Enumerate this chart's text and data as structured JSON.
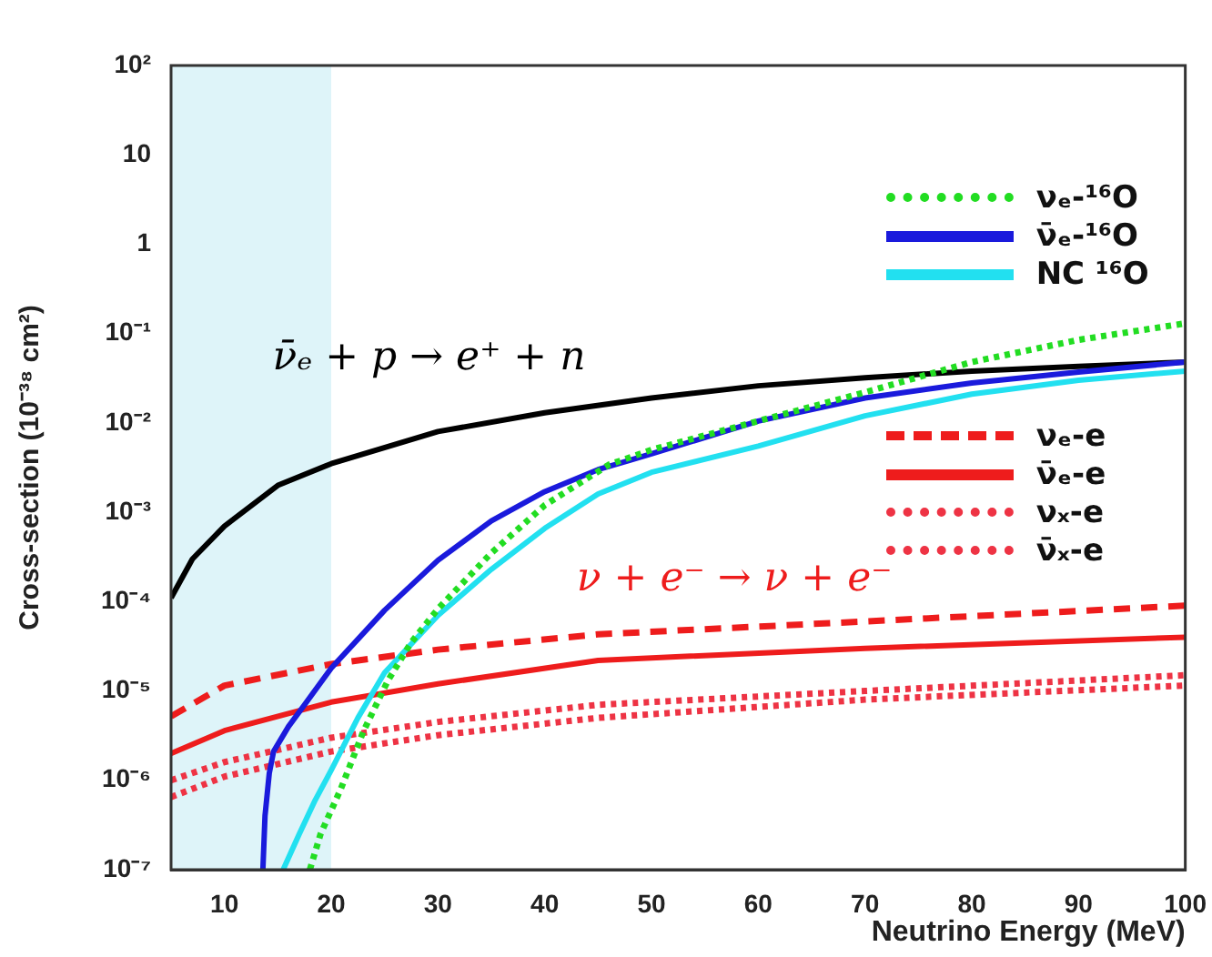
{
  "chart_data": {
    "type": "line",
    "xlabel": "Neutrino Energy (MeV)",
    "ylabel": "Cross-section (10⁻³⁸ cm²)",
    "log": "y",
    "grid": false,
    "legend": "top right",
    "marker": "none",
    "xlim": [
      5,
      100
    ],
    "xticks": [
      10,
      20,
      30,
      40,
      50,
      60,
      70,
      80,
      90,
      100
    ],
    "ylim": [
      1e-07,
      100
    ],
    "yticks": [
      {
        "value": 1e-07,
        "label": "10⁻⁷"
      },
      {
        "value": 1e-06,
        "label": "10⁻⁶"
      },
      {
        "value": 1e-05,
        "label": "10⁻⁵"
      },
      {
        "value": 0.0001,
        "label": "10⁻⁴"
      },
      {
        "value": 0.001,
        "label": "10⁻³"
      },
      {
        "value": 0.01,
        "label": "10⁻²"
      },
      {
        "value": 0.1,
        "label": "10⁻¹"
      },
      1,
      10,
      {
        "value": 100,
        "label": "10²"
      }
    ],
    "bands": [
      {
        "axis": "x",
        "from": 5,
        "to": 20,
        "color": "#def4f9"
      }
    ],
    "annotations": [
      "ν̄ₑ + p → e⁺ + n",
      "ν + e⁻ → ν + e⁻"
    ],
    "series": [
      {
        "name": "νₑ-¹⁶O",
        "color": "#22dd22",
        "line_style": "dotted",
        "x": [
          18,
          19,
          20.9,
          23,
          25.3,
          27.5,
          30,
          35,
          40,
          46,
          50,
          60,
          70,
          80,
          90,
          100
        ],
        "values": [
          1e-07,
          2.5e-07,
          8e-07,
          3.5e-06,
          1.3e-05,
          3.5e-05,
          8.3e-05,
          0.00035,
          0.0012,
          0.0034,
          0.005,
          0.0105,
          0.022,
          0.048,
          0.085,
          0.13
        ]
      },
      {
        "name": "ν̄ₑ-¹⁶O",
        "color": "#1a1adc",
        "line_style": "solid",
        "x": [
          13.6,
          13.8,
          14.2,
          14.6,
          16,
          17.5,
          20,
          25,
          30,
          35,
          40,
          45,
          50,
          60,
          70,
          80,
          90,
          100
        ],
        "values": [
          1e-07,
          4e-07,
          1.2e-06,
          2.1e-06,
          4e-06,
          7e-06,
          1.8e-05,
          8e-05,
          0.00029,
          0.0008,
          0.0017,
          0.003,
          0.0045,
          0.0105,
          0.019,
          0.028,
          0.037,
          0.048
        ]
      },
      {
        "name": "NC ¹⁶O",
        "color": "#22e0f0",
        "line_style": "solid",
        "x": [
          15.5,
          17,
          18.5,
          20,
          22.5,
          25,
          30,
          35,
          40,
          45,
          50,
          60,
          70,
          80,
          90,
          100
        ],
        "values": [
          1e-07,
          2.5e-07,
          6e-07,
          1.3e-06,
          5e-06,
          1.6e-05,
          7e-05,
          0.00023,
          0.00066,
          0.0016,
          0.0028,
          0.0055,
          0.012,
          0.021,
          0.03,
          0.038
        ]
      },
      {
        "name": "νₑ-e",
        "color": "#ee1c1c",
        "line_style": "dashed",
        "x": [
          5,
          10,
          20,
          30,
          45,
          70,
          100
        ],
        "values": [
          5.2e-06,
          1.15e-05,
          2e-05,
          2.9e-05,
          4.3e-05,
          6e-05,
          9e-05
        ]
      },
      {
        "name": "ν̄ₑ-e",
        "color": "#ee1c1c",
        "line_style": "solid",
        "x": [
          5,
          10,
          20,
          30,
          45,
          70,
          100
        ],
        "values": [
          2e-06,
          3.6e-06,
          7.5e-06,
          1.2e-05,
          2.2e-05,
          3e-05,
          4e-05
        ]
      },
      {
        "name": "νₓ-e",
        "color": "#ee3344",
        "line_style": "dotted",
        "x": [
          5,
          10,
          20,
          30,
          45,
          70,
          100
        ],
        "values": [
          1e-06,
          1.6e-06,
          3e-06,
          4.5e-06,
          7e-06,
          1e-05,
          1.5e-05
        ]
      },
      {
        "name": "ν̄ₓ-e",
        "color": "#ee3344",
        "line_style": "dotted",
        "x": [
          5,
          10,
          20,
          30,
          45,
          70,
          100
        ],
        "values": [
          6.5e-07,
          1.1e-06,
          2.1e-06,
          3.2e-06,
          5e-06,
          8e-06,
          1.15e-05
        ]
      },
      {
        "color": "#000000",
        "line_style": "solid",
        "x": [
          5,
          7,
          10,
          15,
          20,
          30,
          40,
          50,
          60,
          70,
          80,
          90,
          100
        ],
        "values": [
          0.00011,
          0.0003,
          0.0007,
          0.002,
          0.0035,
          0.008,
          0.013,
          0.019,
          0.026,
          0.032,
          0.038,
          0.043,
          0.048
        ]
      }
    ]
  }
}
